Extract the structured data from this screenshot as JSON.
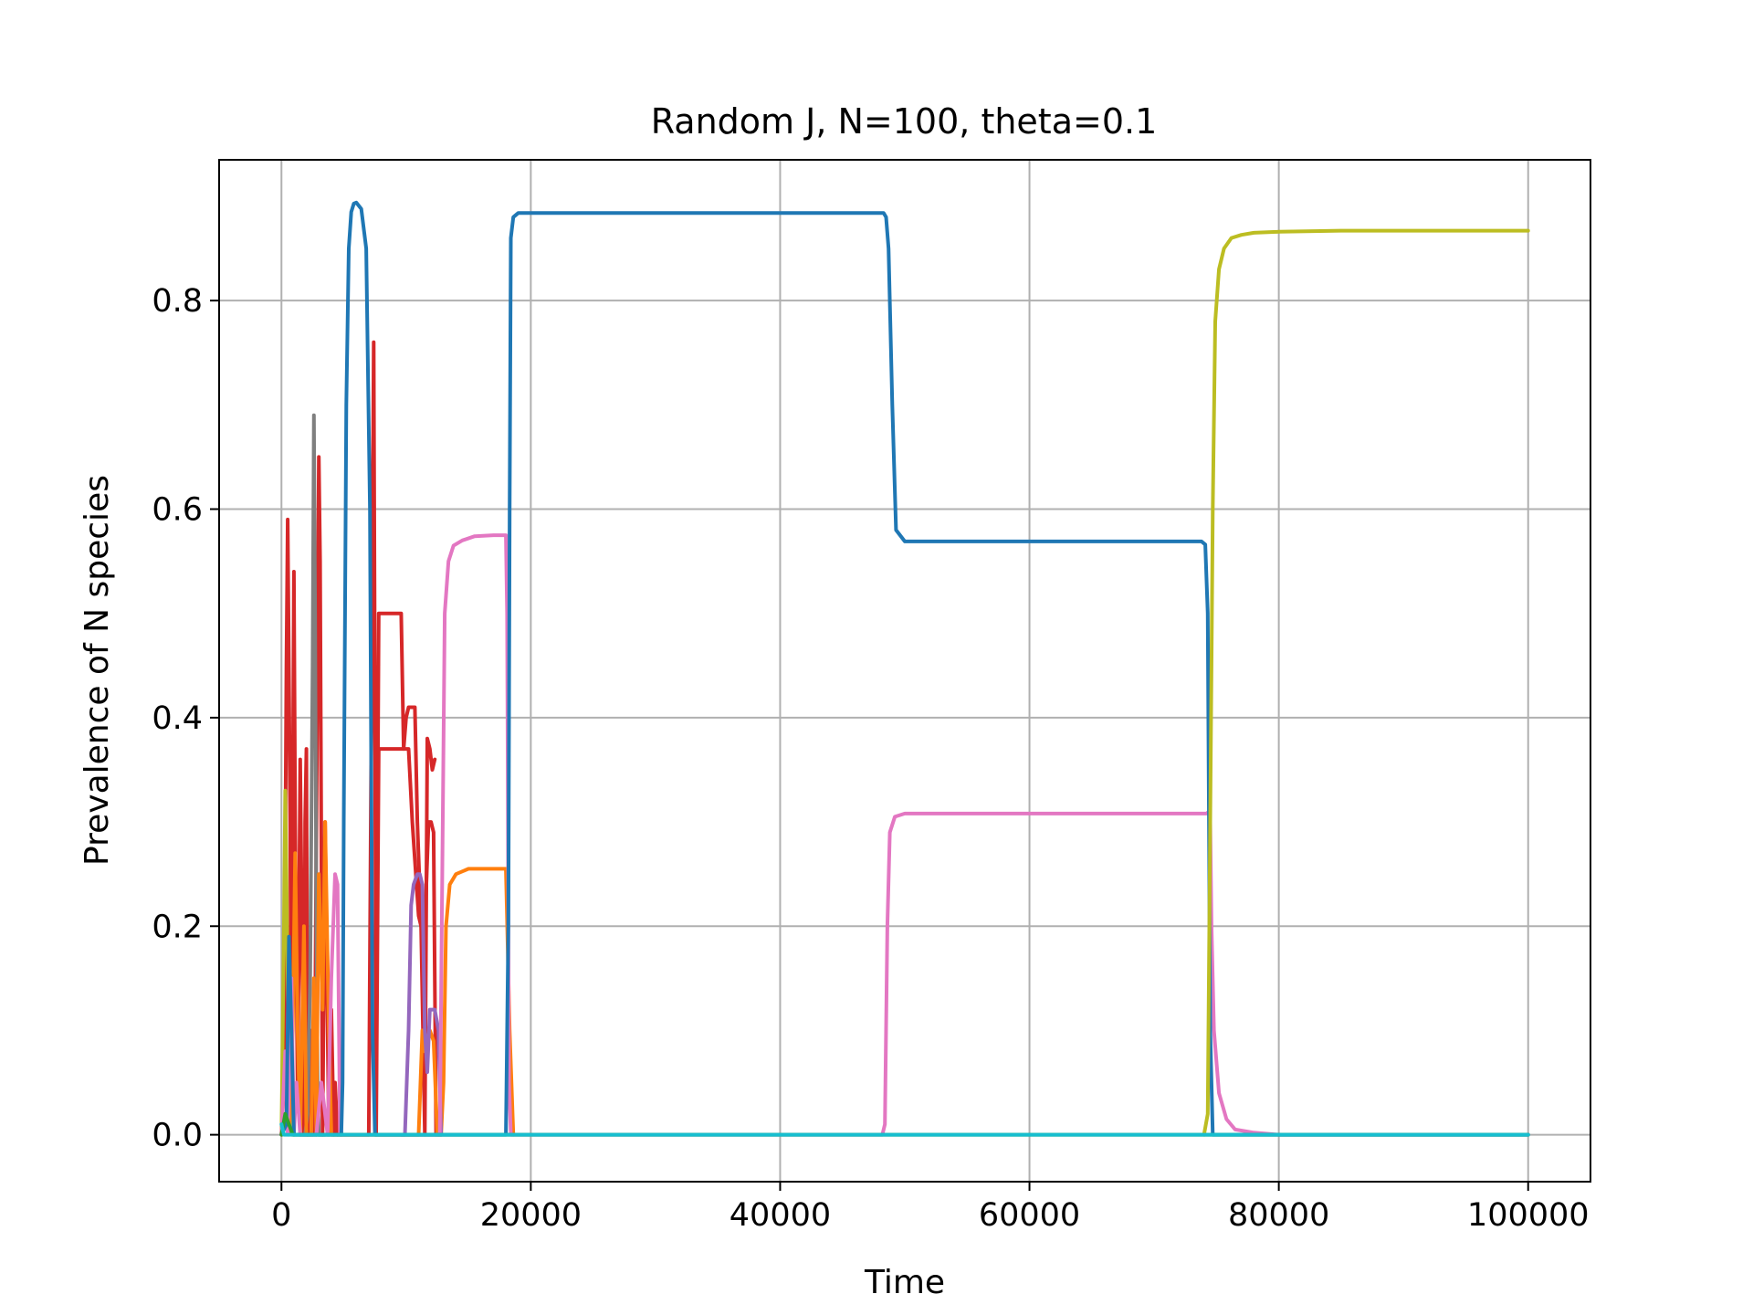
{
  "chart_data": {
    "type": "line",
    "title": "Random J, N=100, theta=0.1",
    "xlabel": "Time",
    "ylabel": "Prevalence of N species",
    "xlim": [
      -5000,
      105000
    ],
    "ylim": [
      -0.045,
      0.935
    ],
    "xticks": [
      0,
      20000,
      40000,
      60000,
      80000,
      100000
    ],
    "xtick_labels": [
      "0",
      "20000",
      "40000",
      "60000",
      "80000",
      "100000"
    ],
    "yticks": [
      0.0,
      0.2,
      0.4,
      0.6,
      0.8
    ],
    "ytick_labels": [
      "0.0",
      "0.2",
      "0.4",
      "0.6",
      "0.8"
    ],
    "grid": true,
    "legend": "none",
    "colors": {
      "blue": "#1f77b4",
      "orange": "#ff7f0e",
      "green": "#2ca02c",
      "red": "#d62728",
      "purple": "#9467bd",
      "pink": "#e377c2",
      "gray": "#7f7f7f",
      "olive": "#bcbd22",
      "cyan": "#17becf",
      "grid": "#b0b0b0"
    },
    "series": [
      {
        "color": "#d62728",
        "x": [
          0,
          200,
          400,
          500,
          700,
          800,
          1000,
          1100,
          1300,
          1500,
          1800,
          1900,
          2000,
          2100,
          2300,
          2500,
          2700,
          3000,
          3100,
          3300,
          3500,
          3800,
          4000,
          4200,
          4300,
          4500,
          4700,
          4800,
          5000,
          7000,
          7200,
          7400,
          7600,
          7800,
          8000,
          8200,
          8400,
          8600,
          9000,
          9600,
          9800,
          10000,
          10200,
          10500,
          10700,
          10900,
          11200,
          11500,
          11700,
          11900,
          12100,
          12300
        ],
        "y": [
          0.0,
          0.05,
          0.45,
          0.59,
          0.3,
          0.05,
          0.54,
          0.3,
          0.03,
          0.36,
          0.0,
          0.3,
          0.37,
          0.0,
          0.1,
          0.0,
          0.1,
          0.65,
          0.55,
          0.0,
          0.3,
          0.0,
          0.12,
          0.0,
          0.05,
          0.0,
          0.02,
          0.0,
          0.0,
          0.0,
          0.37,
          0.76,
          0.05,
          0.5,
          0.5,
          0.5,
          0.5,
          0.5,
          0.5,
          0.5,
          0.37,
          0.4,
          0.41,
          0.41,
          0.41,
          0.3,
          0.2,
          0.0,
          0.38,
          0.37,
          0.35,
          0.36
        ]
      },
      {
        "color": "#d62728",
        "x": [
          7600,
          7800,
          8000,
          9500,
          10200,
          10500,
          11000,
          11200,
          11500,
          11800,
          12000,
          12200,
          12400
        ],
        "y": [
          0.0,
          0.37,
          0.37,
          0.37,
          0.37,
          0.3,
          0.21,
          0.2,
          0.2,
          0.3,
          0.3,
          0.29,
          0.0
        ]
      },
      {
        "color": "#7f7f7f",
        "x": [
          1900,
          2100,
          2300,
          2500,
          2600,
          2700,
          2800,
          2900,
          3000,
          3200,
          3500
        ],
        "y": [
          0.0,
          0.02,
          0.15,
          0.45,
          0.69,
          0.5,
          0.2,
          0.05,
          0.0,
          0.0,
          0.0
        ]
      },
      {
        "color": "#bcbd22",
        "x": [
          0,
          200,
          300,
          400,
          600,
          800,
          1000
        ],
        "y": [
          0.0,
          0.2,
          0.33,
          0.25,
          0.05,
          0.0,
          0.0
        ]
      },
      {
        "color": "#ff7f0e",
        "x": [
          600,
          900,
          1100,
          1300,
          1500,
          1800,
          2000,
          2400,
          2600,
          2800,
          3000,
          3300,
          3500,
          3800,
          4000,
          4200,
          11000,
          11300,
          11500,
          11700,
          11900,
          12200,
          12500,
          12800,
          13000,
          13200,
          13500,
          14000,
          15000,
          16000,
          18000,
          18300,
          18600
        ],
        "y": [
          0.0,
          0.1,
          0.27,
          0.1,
          0.0,
          0.2,
          0.0,
          0.0,
          0.15,
          0.0,
          0.25,
          0.12,
          0.3,
          0.1,
          0.0,
          0.0,
          0.0,
          0.1,
          0.08,
          0.09,
          0.1,
          0.09,
          0.0,
          0.0,
          0.05,
          0.2,
          0.24,
          0.25,
          0.255,
          0.255,
          0.255,
          0.1,
          0.0
        ]
      },
      {
        "color": "#9467bd",
        "x": [
          9600,
          9900,
          10200,
          10400,
          10600,
          10900,
          11100,
          11300,
          11500,
          11700,
          11900,
          12100,
          12300,
          12600,
          12800
        ],
        "y": [
          0.0,
          0.0,
          0.1,
          0.22,
          0.24,
          0.25,
          0.25,
          0.24,
          0.1,
          0.06,
          0.12,
          0.12,
          0.12,
          0.1,
          0.0
        ]
      },
      {
        "color": "#e377c2",
        "x": [
          0,
          300,
          500,
          800,
          1000,
          1200,
          1500,
          2000,
          2800,
          3200,
          3700,
          4000,
          4300,
          4500,
          4700,
          12300,
          12700,
          12900,
          13100,
          13400,
          13800,
          14500,
          15500,
          17000,
          18000,
          18100,
          18250,
          18400,
          48200,
          48400,
          48600,
          48800,
          49200,
          50000,
          60000,
          70000,
          74200,
          74400,
          74500,
          74600,
          74800,
          75200,
          75800,
          76500,
          78000,
          80000,
          85000,
          100000
        ],
        "y": [
          0.0,
          0.08,
          0.0,
          0.15,
          0.0,
          0.05,
          0.0,
          0.0,
          0.0,
          0.05,
          0.0,
          0.15,
          0.25,
          0.24,
          0.0,
          0.0,
          0.0,
          0.25,
          0.5,
          0.55,
          0.565,
          0.57,
          0.574,
          0.575,
          0.575,
          0.5,
          0.05,
          0.0,
          0.0,
          0.01,
          0.2,
          0.29,
          0.305,
          0.308,
          0.308,
          0.308,
          0.308,
          0.31,
          0.3,
          0.2,
          0.1,
          0.04,
          0.015,
          0.005,
          0.002,
          0.0,
          0.0,
          0.0
        ]
      },
      {
        "color": "#1f77b4",
        "x": [
          0,
          400,
          600,
          800,
          1000,
          1200,
          1500,
          2000,
          3000,
          4000,
          4800,
          4900,
          5000,
          5200,
          5400,
          5600,
          5800,
          6000,
          6400,
          6800,
          7100,
          7300,
          7500,
          8000,
          18000,
          18200,
          18300,
          18400,
          18600,
          19000,
          20000,
          48000,
          48300,
          48500,
          48700,
          49000,
          49300,
          50000,
          60000,
          73800,
          74100,
          74300,
          74500,
          74700,
          75000,
          100000
        ],
        "y": [
          0.0,
          0.01,
          0.19,
          0.1,
          0.0,
          0.0,
          0.0,
          0.0,
          0.0,
          0.0,
          0.0,
          0.05,
          0.3,
          0.7,
          0.85,
          0.885,
          0.893,
          0.894,
          0.888,
          0.85,
          0.6,
          0.1,
          0.0,
          0.0,
          0.0,
          0.2,
          0.6,
          0.86,
          0.88,
          0.884,
          0.884,
          0.884,
          0.884,
          0.88,
          0.85,
          0.7,
          0.58,
          0.569,
          0.569,
          0.569,
          0.566,
          0.5,
          0.1,
          0.0,
          0.0,
          0.0
        ]
      },
      {
        "color": "#2ca02c",
        "x": [
          0,
          300,
          600,
          900,
          1200,
          100000
        ],
        "y": [
          0.0,
          0.02,
          0.01,
          0.0,
          0.0,
          0.0
        ]
      },
      {
        "color": "#bcbd22",
        "x": [
          74000,
          74300,
          74500,
          74700,
          74900,
          75200,
          75600,
          76200,
          77000,
          78000,
          80000,
          85000,
          90000,
          95000,
          100000
        ],
        "y": [
          0.0,
          0.02,
          0.3,
          0.6,
          0.78,
          0.83,
          0.85,
          0.86,
          0.863,
          0.865,
          0.866,
          0.867,
          0.867,
          0.867,
          0.867
        ]
      },
      {
        "color": "#17becf",
        "x": [
          0,
          200,
          400,
          100000
        ],
        "y": [
          0.01,
          0.0,
          0.0,
          0.0
        ]
      }
    ]
  }
}
